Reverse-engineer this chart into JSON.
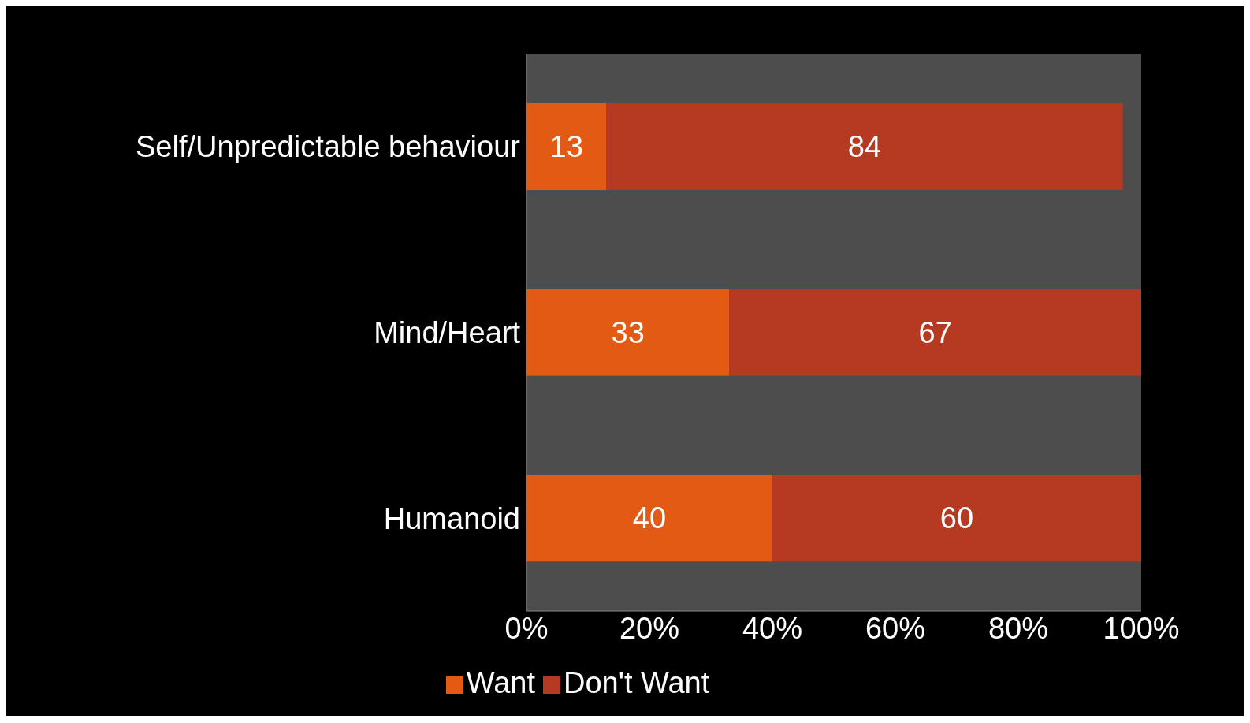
{
  "chart_data": {
    "type": "bar",
    "orientation": "horizontal",
    "stacked": true,
    "categories": [
      "Self/Unpredictable behaviour",
      "Mind/Heart",
      "Humanoid"
    ],
    "series": [
      {
        "name": "Want",
        "color": "#e35a14",
        "values": [
          13,
          33,
          40
        ],
        "value_labels": [
          "13",
          "33",
          "40"
        ]
      },
      {
        "name": "Don't Want",
        "color": "#b53a21",
        "values": [
          84,
          67,
          60
        ],
        "value_labels": [
          "84",
          "67",
          "60"
        ]
      }
    ],
    "xlim": [
      0,
      100
    ],
    "xticks": [
      {
        "value": 0,
        "label": "0%"
      },
      {
        "value": 20,
        "label": "20%"
      },
      {
        "value": 40,
        "label": "40%"
      },
      {
        "value": 60,
        "label": "60%"
      },
      {
        "value": 80,
        "label": "80%"
      },
      {
        "value": 100,
        "label": "100%"
      }
    ],
    "grid": false,
    "legend": "bottom"
  }
}
